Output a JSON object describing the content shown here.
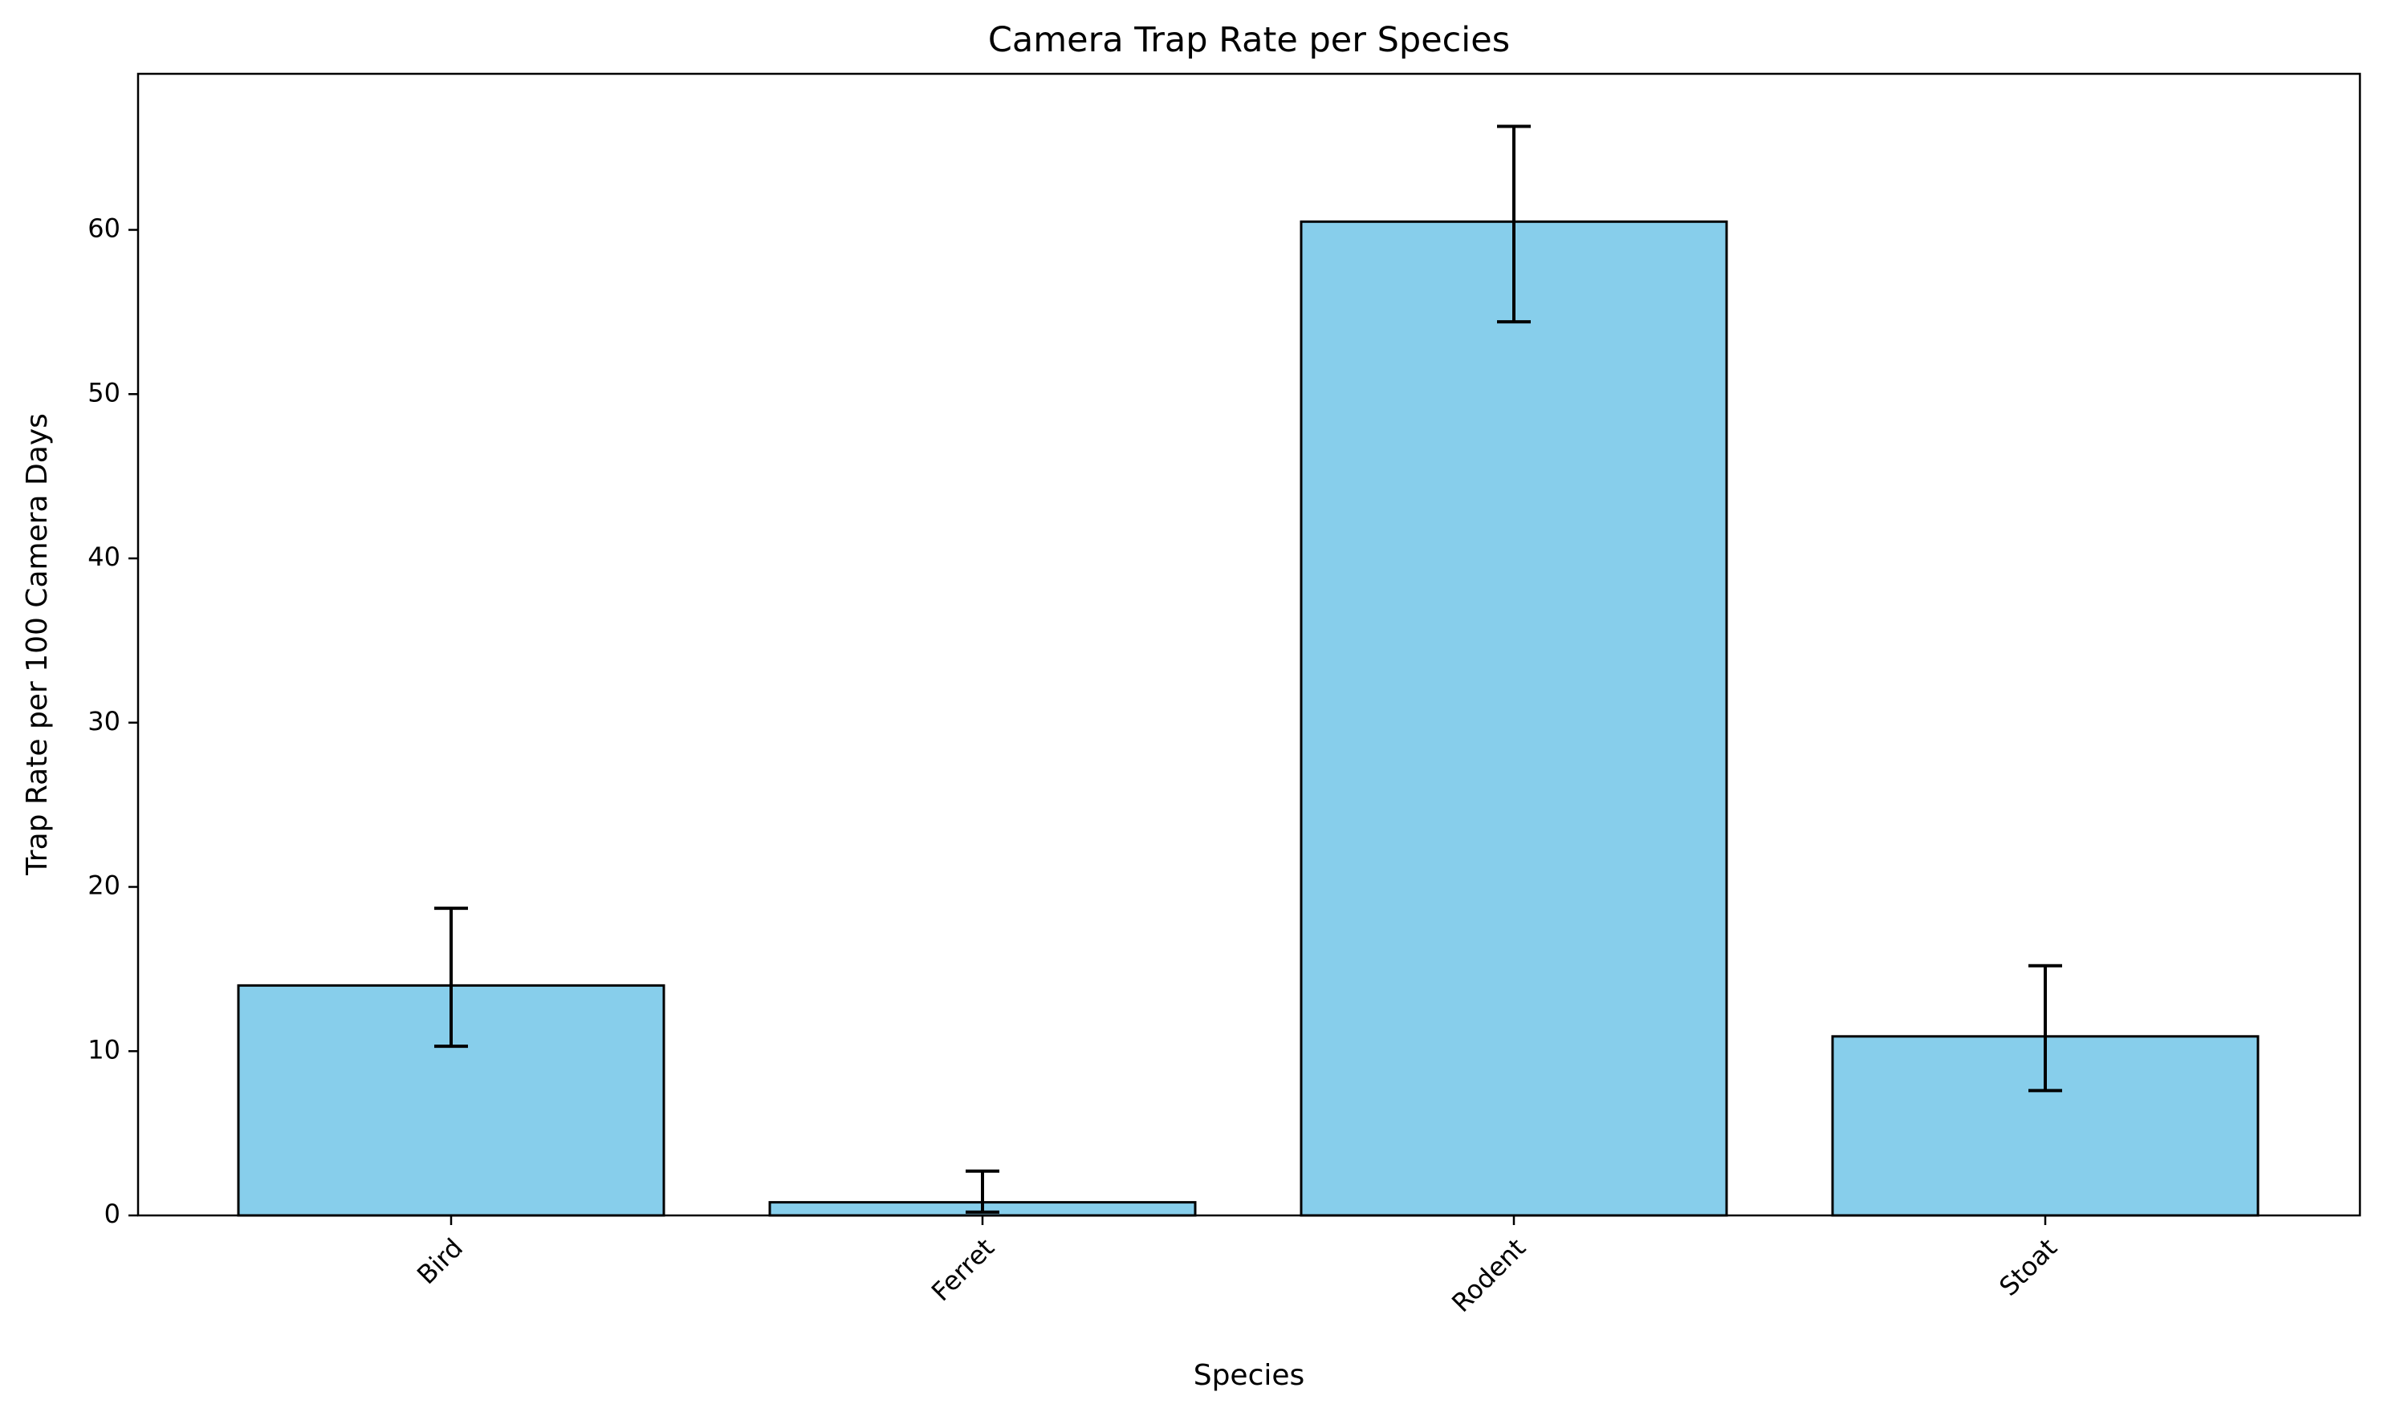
{
  "chart_data": {
    "type": "bar",
    "title": "Camera Trap Rate per Species",
    "xlabel": "Species",
    "ylabel": "Trap Rate per 100 Camera Days",
    "categories": [
      "Bird",
      "Ferret",
      "Rodent",
      "Stoat"
    ],
    "values": [
      14.0,
      0.8,
      60.5,
      10.9
    ],
    "error_bars": [
      {
        "low": 10.3,
        "high": 18.7
      },
      {
        "low": 0.2,
        "high": 2.7
      },
      {
        "low": 54.4,
        "high": 66.3
      },
      {
        "low": 7.6,
        "high": 15.2
      }
    ],
    "ylim": [
      0,
      69.5
    ],
    "yticks": [
      0,
      10,
      20,
      30,
      40,
      50,
      60
    ],
    "xtick_rotation_deg": 45,
    "grid": false,
    "colors": {
      "bar_fill": "#87CEEB",
      "bar_edge": "#000000",
      "error_bar": "#000000"
    }
  }
}
